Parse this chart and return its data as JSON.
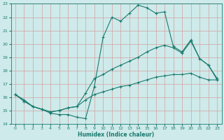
{
  "xlabel": "Humidex (Indice chaleur)",
  "bg_color": "#ceeaea",
  "grid_color": "#b8d8d8",
  "line_color": "#1a7a6e",
  "xlim": [
    -0.5,
    23.5
  ],
  "ylim": [
    14,
    23
  ],
  "xticks": [
    0,
    1,
    2,
    3,
    4,
    5,
    6,
    7,
    8,
    9,
    10,
    11,
    12,
    13,
    14,
    15,
    16,
    17,
    18,
    19,
    20,
    21,
    22,
    23
  ],
  "yticks": [
    14,
    15,
    16,
    17,
    18,
    19,
    20,
    21,
    22,
    23
  ],
  "line1_x": [
    0,
    1,
    2,
    3,
    4,
    5,
    6,
    7,
    8,
    9,
    10,
    11,
    12,
    13,
    14,
    15,
    16,
    17,
    18,
    19,
    20,
    21,
    22,
    23
  ],
  "line1_y": [
    16.2,
    15.8,
    15.3,
    15.1,
    14.8,
    14.7,
    14.7,
    14.5,
    14.4,
    16.8,
    20.5,
    22.0,
    21.7,
    22.3,
    22.9,
    22.7,
    22.3,
    22.4,
    19.8,
    19.4,
    20.3,
    18.9,
    18.4,
    17.3
  ],
  "line2_x": [
    0,
    1,
    2,
    3,
    4,
    5,
    6,
    7,
    8,
    9,
    10,
    11,
    12,
    13,
    14,
    15,
    16,
    17,
    18,
    19,
    20,
    21,
    22,
    23
  ],
  "line2_y": [
    16.2,
    15.7,
    15.3,
    15.1,
    14.9,
    15.0,
    15.2,
    15.3,
    16.3,
    17.4,
    17.7,
    18.1,
    18.4,
    18.7,
    19.0,
    19.4,
    19.7,
    19.9,
    19.7,
    19.3,
    20.2,
    18.9,
    18.4,
    17.4
  ],
  "line3_x": [
    0,
    1,
    2,
    3,
    4,
    5,
    6,
    7,
    8,
    9,
    10,
    11,
    12,
    13,
    14,
    15,
    16,
    17,
    18,
    19,
    20,
    21,
    22,
    23
  ],
  "line3_y": [
    16.2,
    15.7,
    15.3,
    15.1,
    14.9,
    15.0,
    15.2,
    15.3,
    15.8,
    16.2,
    16.4,
    16.6,
    16.8,
    16.9,
    17.1,
    17.3,
    17.5,
    17.6,
    17.7,
    17.7,
    17.8,
    17.5,
    17.3,
    17.3
  ]
}
